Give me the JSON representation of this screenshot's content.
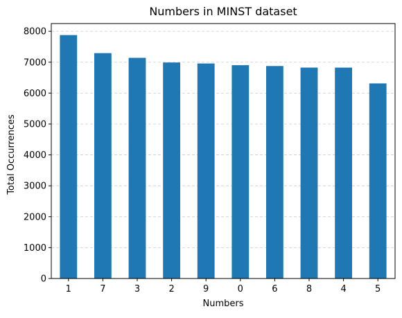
{
  "chart_data": {
    "type": "bar",
    "title": "Numbers in MINST dataset",
    "xlabel": "Numbers",
    "ylabel": "Total Occurrences",
    "categories": [
      "1",
      "7",
      "3",
      "2",
      "9",
      "0",
      "6",
      "8",
      "4",
      "5"
    ],
    "values": [
      7877,
      7293,
      7141,
      6990,
      6958,
      6903,
      6876,
      6825,
      6824,
      6313
    ],
    "ylim": [
      0,
      8250
    ],
    "yticks": [
      0,
      1000,
      2000,
      3000,
      4000,
      5000,
      6000,
      7000,
      8000
    ],
    "grid": "horizontal dashed",
    "legend": "none",
    "bar_color": "#1f77b4",
    "grid_color": "#cccccc"
  }
}
